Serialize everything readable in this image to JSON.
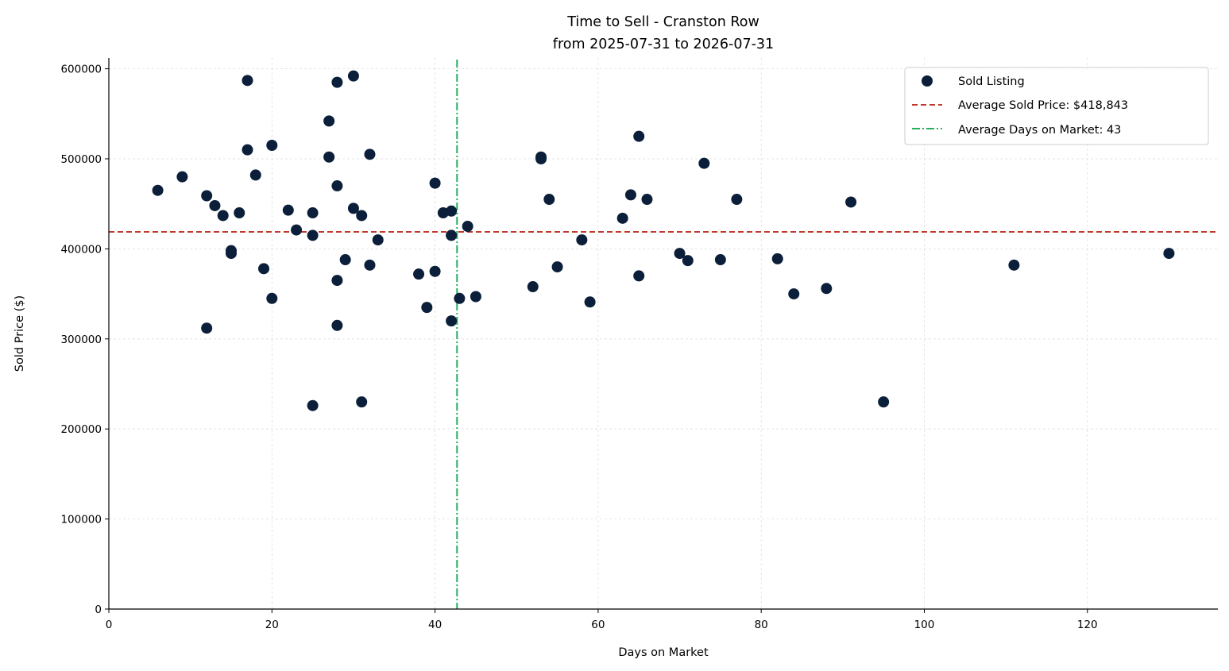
{
  "chart_data": {
    "type": "scatter",
    "title": "Time to Sell - Cranston Row",
    "subtitle": "from 2025-07-31 to 2026-07-31",
    "xlabel": "Days on Market",
    "ylabel": "Sold Price ($)",
    "xlim": [
      0,
      136
    ],
    "ylim": [
      0,
      612000
    ],
    "xticks": [
      0,
      20,
      40,
      60,
      80,
      100,
      120
    ],
    "yticks": [
      0,
      100000,
      200000,
      300000,
      400000,
      500000,
      600000
    ],
    "grid": true,
    "legend_position": "top-right",
    "colors": {
      "points": "#0b1f3a",
      "avg_price_line": "#c0392b",
      "avg_days_line": "#27ae60",
      "grid": "#dddddd"
    },
    "series": [
      {
        "name": "Sold Listing",
        "points": [
          [
            6,
            465000
          ],
          [
            9,
            480000
          ],
          [
            12,
            459000
          ],
          [
            12,
            312000
          ],
          [
            13,
            448000
          ],
          [
            14,
            437000
          ],
          [
            15,
            398000
          ],
          [
            15,
            395000
          ],
          [
            16,
            440000
          ],
          [
            17,
            587000
          ],
          [
            17,
            510000
          ],
          [
            18,
            482000
          ],
          [
            19,
            378000
          ],
          [
            20,
            515000
          ],
          [
            20,
            345000
          ],
          [
            22,
            443000
          ],
          [
            23,
            421000
          ],
          [
            25,
            440000
          ],
          [
            25,
            415000
          ],
          [
            25,
            226000
          ],
          [
            27,
            542000
          ],
          [
            27,
            502000
          ],
          [
            28,
            585000
          ],
          [
            28,
            470000
          ],
          [
            28,
            365000
          ],
          [
            28,
            315000
          ],
          [
            29,
            388000
          ],
          [
            30,
            592000
          ],
          [
            30,
            445000
          ],
          [
            31,
            437000
          ],
          [
            31,
            230000
          ],
          [
            32,
            505000
          ],
          [
            32,
            382000
          ],
          [
            33,
            410000
          ],
          [
            38,
            372000
          ],
          [
            39,
            335000
          ],
          [
            40,
            473000
          ],
          [
            40,
            375000
          ],
          [
            41,
            440000
          ],
          [
            42,
            442000
          ],
          [
            42,
            415000
          ],
          [
            42,
            320000
          ],
          [
            43,
            345000
          ],
          [
            44,
            425000
          ],
          [
            45,
            347000
          ],
          [
            52,
            358000
          ],
          [
            53,
            502000
          ],
          [
            53,
            500000
          ],
          [
            54,
            455000
          ],
          [
            55,
            380000
          ],
          [
            58,
            410000
          ],
          [
            59,
            341000
          ],
          [
            63,
            434000
          ],
          [
            64,
            460000
          ],
          [
            65,
            525000
          ],
          [
            65,
            370000
          ],
          [
            66,
            455000
          ],
          [
            70,
            395000
          ],
          [
            71,
            387000
          ],
          [
            73,
            495000
          ],
          [
            75,
            388000
          ],
          [
            77,
            455000
          ],
          [
            82,
            389000
          ],
          [
            84,
            350000
          ],
          [
            88,
            356000
          ],
          [
            91,
            452000
          ],
          [
            95,
            230000
          ],
          [
            111,
            382000
          ],
          [
            130,
            395000
          ]
        ]
      }
    ],
    "reference_lines": [
      {
        "orientation": "horizontal",
        "value": 418843,
        "style": "dashed",
        "label": "Average Sold Price: $418,843"
      },
      {
        "orientation": "vertical",
        "value": 42.7,
        "style": "dashdot",
        "label": "Average Days on Market: 43"
      }
    ]
  }
}
